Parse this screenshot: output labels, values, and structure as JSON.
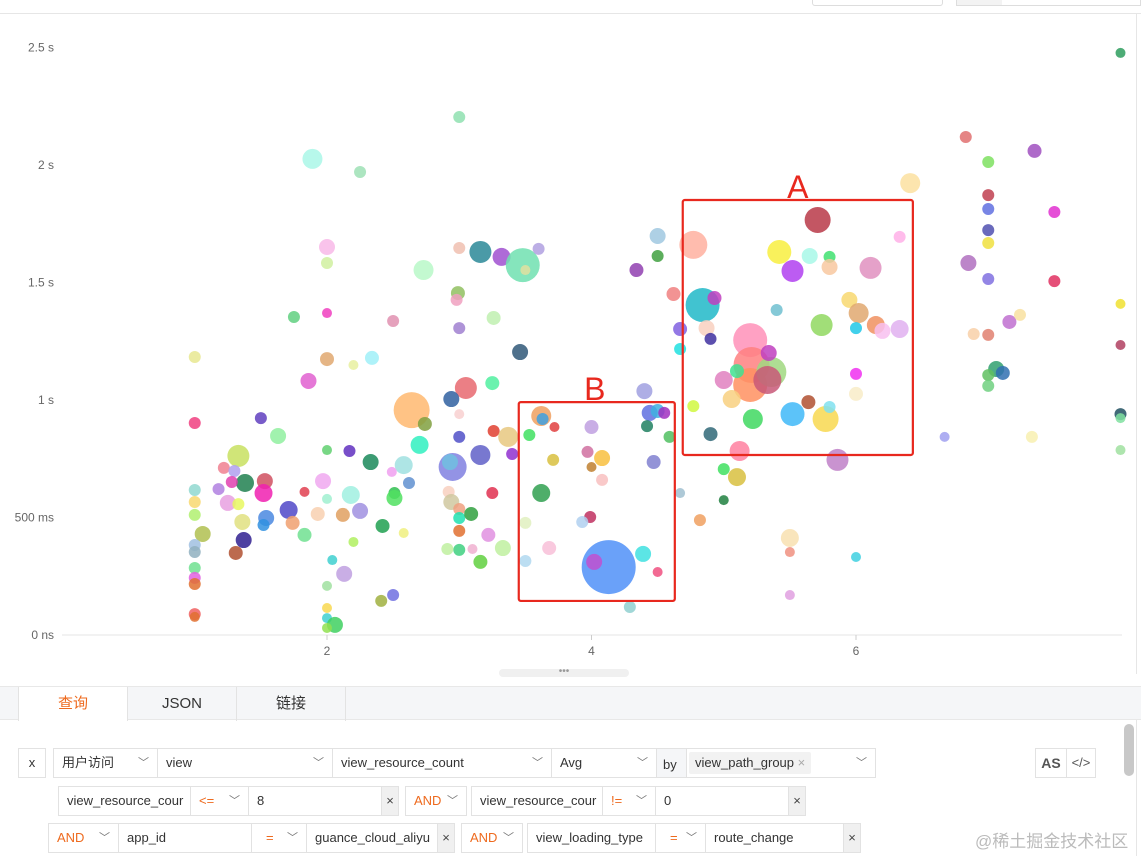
{
  "chart_data": {
    "type": "scatter",
    "variant": "bubble",
    "title": "",
    "xlabel": "",
    "ylabel": "",
    "xlim": [
      0,
      8
    ],
    "ylim_ms": [
      0,
      2600
    ],
    "x_ticks": [
      {
        "value": 2,
        "label": "2"
      },
      {
        "value": 4,
        "label": "4"
      },
      {
        "value": 6,
        "label": "6"
      }
    ],
    "y_ticks": [
      {
        "value": 0,
        "label": "0 ns"
      },
      {
        "value": 500,
        "label": "500 ms"
      },
      {
        "value": 1000,
        "label": "1 s"
      },
      {
        "value": 1500,
        "label": "1.5 s"
      },
      {
        "value": 2000,
        "label": "2 s"
      },
      {
        "value": 2500,
        "label": "2.5 s"
      }
    ],
    "grid": false,
    "points": [
      [
        8.0,
        2477,
        5,
        "#2e9e5e"
      ],
      [
        3.0,
        2204,
        6,
        "#8fe0b0"
      ],
      [
        1.89,
        2026,
        10,
        "#aaf7e8"
      ],
      [
        2.25,
        1970,
        6,
        "#9de0b5"
      ],
      [
        6.83,
        2119,
        6,
        "#e07070"
      ],
      [
        7.0,
        2013,
        6,
        "#7ee060"
      ],
      [
        7.35,
        2060,
        7,
        "#a050c0"
      ],
      [
        6.41,
        1923,
        10,
        "#fbe0a0"
      ],
      [
        7.0,
        1872,
        6,
        "#c04050"
      ],
      [
        7.0,
        1813,
        6,
        "#6070e0"
      ],
      [
        7.5,
        1800,
        6,
        "#e030d0"
      ],
      [
        7.0,
        1723,
        6,
        "#5050b0"
      ],
      [
        7.0,
        1668,
        6,
        "#f0e040"
      ],
      [
        5.71,
        1766,
        13,
        "#b83848"
      ],
      [
        4.77,
        1660,
        14,
        "#ffb0a0"
      ],
      [
        5.42,
        1630,
        12,
        "#f8ee40"
      ],
      [
        5.65,
        1613,
        8,
        "#a8f8e8"
      ],
      [
        5.8,
        1609,
        6,
        "#40e070"
      ],
      [
        5.8,
        1566,
        8,
        "#f8c8a0"
      ],
      [
        5.52,
        1549,
        11,
        "#b040f0"
      ],
      [
        6.11,
        1562,
        11,
        "#e090c0"
      ],
      [
        6.33,
        1694,
        6,
        "#ffb0e8"
      ],
      [
        2.0,
        1651,
        8,
        "#f8b8e8"
      ],
      [
        2.0,
        1583,
        6,
        "#d0f0a0"
      ],
      [
        3.0,
        1647,
        6,
        "#f0c0b0"
      ],
      [
        3.16,
        1630,
        11,
        "#2a8898"
      ],
      [
        3.32,
        1609,
        9,
        "#a050d0"
      ],
      [
        3.48,
        1574,
        17,
        "#70e0b0"
      ],
      [
        3.6,
        1643,
        6,
        "#b0a0e0"
      ],
      [
        3.5,
        1553,
        5,
        "#e0e0a0"
      ],
      [
        2.73,
        1553,
        10,
        "#b8f8c8"
      ],
      [
        2.99,
        1455,
        7,
        "#90c060"
      ],
      [
        2.98,
        1426,
        6,
        "#f0a0c0"
      ],
      [
        4.34,
        1553,
        7,
        "#9040b0"
      ],
      [
        4.5,
        1698,
        8,
        "#a0c8e0"
      ],
      [
        4.5,
        1613,
        6,
        "#40a040"
      ],
      [
        4.62,
        1451,
        7,
        "#f08080"
      ],
      [
        4.84,
        1404,
        17,
        "#20b8c8"
      ],
      [
        4.93,
        1434,
        7,
        "#c040c0"
      ],
      [
        4.67,
        1302,
        7,
        "#8060e0"
      ],
      [
        4.67,
        1217,
        6,
        "#20e0e0"
      ],
      [
        4.87,
        1306,
        8,
        "#f8d0c0"
      ],
      [
        4.9,
        1260,
        6,
        "#4030a0"
      ],
      [
        5.4,
        1383,
        6,
        "#70c0d0"
      ],
      [
        5.74,
        1319,
        11,
        "#90d860"
      ],
      [
        5.95,
        1426,
        8,
        "#f8d870"
      ],
      [
        6.02,
        1370,
        10,
        "#e0a870"
      ],
      [
        6.15,
        1319,
        9,
        "#f09060"
      ],
      [
        6.0,
        1306,
        6,
        "#20c8e8"
      ],
      [
        6.2,
        1294,
        8,
        "#f8c0f0"
      ],
      [
        6.33,
        1302,
        9,
        "#e0b0f0"
      ],
      [
        5.2,
        1255,
        17,
        "#ff90b8"
      ],
      [
        5.21,
        1149,
        18,
        "#ff8080"
      ],
      [
        5.2,
        1064,
        17,
        "#ff9060"
      ],
      [
        5.36,
        1119,
        15,
        "#a0d880"
      ],
      [
        5.33,
        1085,
        14,
        "#c85878"
      ],
      [
        5.34,
        1200,
        8,
        "#c040c0"
      ],
      [
        5.0,
        1085,
        9,
        "#e080c0"
      ],
      [
        5.1,
        1123,
        7,
        "#40e090"
      ],
      [
        5.06,
        1004,
        9,
        "#f8d080"
      ],
      [
        5.22,
        919,
        10,
        "#40d860"
      ],
      [
        5.52,
        940,
        12,
        "#40b8f8"
      ],
      [
        5.77,
        919,
        13,
        "#f8d850"
      ],
      [
        5.64,
        991,
        7,
        "#b05030"
      ],
      [
        5.8,
        970,
        6,
        "#80e0f0"
      ],
      [
        6.0,
        1111,
        6,
        "#f030f0"
      ],
      [
        6.0,
        1026,
        7,
        "#f8ecc8"
      ],
      [
        4.9,
        855,
        7,
        "#306878"
      ],
      [
        5.12,
        783,
        10,
        "#ff80a0"
      ],
      [
        5.86,
        745,
        11,
        "#c080c8"
      ],
      [
        4.77,
        974,
        6,
        "#d0f840"
      ],
      [
        5.0,
        706,
        6,
        "#40e060"
      ],
      [
        5.1,
        672,
        9,
        "#d8c040"
      ],
      [
        5.0,
        574,
        5,
        "#208040"
      ],
      [
        4.82,
        489,
        6,
        "#f0a060"
      ],
      [
        4.67,
        604,
        5,
        "#a0c0d0"
      ],
      [
        5.5,
        413,
        9,
        "#f8e0b0"
      ],
      [
        5.5,
        353,
        5,
        "#f09080"
      ],
      [
        5.5,
        170,
        5,
        "#e0a0e0"
      ],
      [
        6.0,
        332,
        5,
        "#40d0e0"
      ],
      [
        6.67,
        843,
        5,
        "#a0a0f0"
      ],
      [
        7.33,
        843,
        6,
        "#f8f0b0"
      ],
      [
        6.89,
        1281,
        6,
        "#f8d0a8"
      ],
      [
        7.0,
        1277,
        6,
        "#e08070"
      ],
      [
        7.16,
        1332,
        7,
        "#c070d0"
      ],
      [
        7.24,
        1362,
        6,
        "#f8e0a0"
      ],
      [
        7.06,
        1132,
        8,
        "#30a070"
      ],
      [
        7.11,
        1115,
        7,
        "#3070b0"
      ],
      [
        7.0,
        1106,
        6,
        "#60c060"
      ],
      [
        7.0,
        1060,
        6,
        "#70d080"
      ],
      [
        6.85,
        1583,
        8,
        "#b070c0"
      ],
      [
        7.0,
        1515,
        6,
        "#8070e0"
      ],
      [
        7.5,
        1506,
        6,
        "#e03060"
      ],
      [
        8.0,
        1409,
        5,
        "#f0e030"
      ],
      [
        8.0,
        1234,
        5,
        "#b04060"
      ],
      [
        8.0,
        940,
        6,
        "#205060"
      ],
      [
        8.0,
        923,
        5,
        "#80e0a0"
      ],
      [
        8.0,
        787,
        5,
        "#a0e0a0"
      ],
      [
        4.4,
        1038,
        8,
        "#a0a0e0"
      ],
      [
        3.62,
        932,
        10,
        "#f0a060"
      ],
      [
        3.63,
        919,
        6,
        "#40a0e0"
      ],
      [
        3.53,
        851,
        6,
        "#40e060"
      ],
      [
        3.72,
        885,
        5,
        "#e04040"
      ],
      [
        4.0,
        885,
        7,
        "#c0a0e0"
      ],
      [
        4.44,
        945,
        8,
        "#6070e0"
      ],
      [
        4.5,
        953,
        7,
        "#40b0e0"
      ],
      [
        4.55,
        945,
        6,
        "#a030c0"
      ],
      [
        4.42,
        889,
        6,
        "#208060"
      ],
      [
        4.59,
        843,
        6,
        "#50c060"
      ],
      [
        3.71,
        745,
        6,
        "#d8c040"
      ],
      [
        3.97,
        779,
        6,
        "#d070a0"
      ],
      [
        4.08,
        753,
        8,
        "#f8c040"
      ],
      [
        4.0,
        715,
        5,
        "#c08030"
      ],
      [
        4.08,
        660,
        6,
        "#f8c0c0"
      ],
      [
        4.47,
        736,
        7,
        "#8080d0"
      ],
      [
        3.62,
        604,
        9,
        "#30a050"
      ],
      [
        3.5,
        477,
        6,
        "#e0f0c0"
      ],
      [
        3.99,
        502,
        6,
        "#c03060"
      ],
      [
        3.93,
        481,
        6,
        "#b0d0f0"
      ],
      [
        3.68,
        370,
        7,
        "#f8c0d8"
      ],
      [
        4.13,
        289,
        27,
        "#5090f8"
      ],
      [
        4.02,
        311,
        8,
        "#c050d0"
      ],
      [
        4.39,
        345,
        8,
        "#40e0e0"
      ],
      [
        3.5,
        315,
        6,
        "#b0d8f0"
      ],
      [
        4.5,
        268,
        5,
        "#f05080"
      ],
      [
        4.29,
        119,
        6,
        "#90d0d0"
      ],
      [
        1.0,
        1183,
        6,
        "#e8e890"
      ],
      [
        2.0,
        1174,
        7,
        "#e0a870"
      ],
      [
        2.2,
        1149,
        5,
        "#e8f0a0"
      ],
      [
        2.34,
        1179,
        7,
        "#a0f0f8"
      ],
      [
        1.86,
        1081,
        8,
        "#e060d0"
      ],
      [
        1.0,
        902,
        6,
        "#f04080"
      ],
      [
        1.5,
        923,
        6,
        "#6040c0"
      ],
      [
        1.63,
        847,
        8,
        "#90f0a0"
      ],
      [
        2.64,
        957,
        18,
        "#ffb870"
      ],
      [
        2.74,
        898,
        7,
        "#80a040"
      ],
      [
        3.05,
        1051,
        11,
        "#e86870"
      ],
      [
        2.94,
        1004,
        8,
        "#3060a0"
      ],
      [
        3.25,
        1072,
        7,
        "#50f0a0"
      ],
      [
        3.0,
        940,
        5,
        "#f8d0d0"
      ],
      [
        3.46,
        1204,
        8,
        "#305878"
      ],
      [
        3.0,
        1306,
        6,
        "#a080d0"
      ],
      [
        3.26,
        1349,
        7,
        "#c0f0b0"
      ],
      [
        2.5,
        1336,
        6,
        "#e090b0"
      ],
      [
        1.75,
        1353,
        6,
        "#60d080"
      ],
      [
        2.0,
        1370,
        5,
        "#f040c0"
      ],
      [
        1.33,
        762,
        11,
        "#c8e060"
      ],
      [
        1.22,
        711,
        6,
        "#f08090"
      ],
      [
        1.3,
        698,
        6,
        "#b0a0f0"
      ],
      [
        1.38,
        647,
        9,
        "#208050"
      ],
      [
        1.28,
        651,
        6,
        "#e040b0"
      ],
      [
        1.53,
        655,
        8,
        "#d05060"
      ],
      [
        1.52,
        604,
        9,
        "#f020b0"
      ],
      [
        1.0,
        617,
        6,
        "#90d8d0"
      ],
      [
        1.18,
        621,
        6,
        "#b080e0"
      ],
      [
        1.25,
        562,
        8,
        "#e8a0e0"
      ],
      [
        1.33,
        557,
        6,
        "#e8f860"
      ],
      [
        1.0,
        566,
        6,
        "#f8d870"
      ],
      [
        1.0,
        511,
        6,
        "#b0f070"
      ],
      [
        1.06,
        430,
        8,
        "#b0c050"
      ],
      [
        1.36,
        481,
        8,
        "#e0e080"
      ],
      [
        1.37,
        404,
        8,
        "#302090"
      ],
      [
        1.31,
        349,
        7,
        "#b05030"
      ],
      [
        1.54,
        498,
        8,
        "#4a88e0"
      ],
      [
        1.52,
        468,
        6,
        "#3090e0"
      ],
      [
        1.0,
        383,
        6,
        "#a0c0e0"
      ],
      [
        1.0,
        353,
        6,
        "#90b0c0"
      ],
      [
        1.0,
        285,
        6,
        "#70e090"
      ],
      [
        1.0,
        243,
        6,
        "#e060e0"
      ],
      [
        1.0,
        217,
        6,
        "#e07030"
      ],
      [
        1.0,
        89,
        6,
        "#f06060"
      ],
      [
        1.0,
        77,
        5,
        "#e07030"
      ],
      [
        1.71,
        532,
        9,
        "#5048c8"
      ],
      [
        1.74,
        477,
        7,
        "#f0a070"
      ],
      [
        1.83,
        426,
        7,
        "#70e090"
      ],
      [
        1.83,
        609,
        5,
        "#e04050"
      ],
      [
        1.97,
        655,
        8,
        "#f0a8f0"
      ],
      [
        2.0,
        579,
        5,
        "#a0f0d0"
      ],
      [
        2.17,
        783,
        6,
        "#6030c0"
      ],
      [
        2.0,
        787,
        5,
        "#60d070"
      ],
      [
        2.33,
        736,
        8,
        "#1a8a5a"
      ],
      [
        2.18,
        596,
        9,
        "#a0f0e0"
      ],
      [
        1.93,
        515,
        7,
        "#f8d0b0"
      ],
      [
        2.12,
        511,
        7,
        "#e0a060"
      ],
      [
        2.25,
        528,
        8,
        "#a090e0"
      ],
      [
        2.42,
        464,
        7,
        "#20a050"
      ],
      [
        2.51,
        604,
        6,
        "#30c050"
      ],
      [
        2.51,
        583,
        8,
        "#50e060"
      ],
      [
        2.58,
        434,
        5,
        "#f0f080"
      ],
      [
        2.2,
        396,
        5,
        "#b0f060"
      ],
      [
        2.04,
        319,
        5,
        "#40d0d0"
      ],
      [
        2.13,
        260,
        8,
        "#c0a0e0"
      ],
      [
        2.0,
        209,
        5,
        "#a0e0a0"
      ],
      [
        2.0,
        115,
        5,
        "#f8d850"
      ],
      [
        2.0,
        72,
        5,
        "#40d0d0"
      ],
      [
        2.06,
        43,
        8,
        "#40d060"
      ],
      [
        2.0,
        30,
        5,
        "#90e050"
      ],
      [
        2.41,
        145,
        6,
        "#a0b040"
      ],
      [
        2.5,
        170,
        6,
        "#7070e0"
      ],
      [
        2.7,
        809,
        9,
        "#30f0c0"
      ],
      [
        2.58,
        723,
        9,
        "#a0e0e0"
      ],
      [
        2.62,
        647,
        6,
        "#6090d0"
      ],
      [
        2.49,
        694,
        5,
        "#f0a0f0"
      ],
      [
        2.95,
        715,
        14,
        "#8080e0"
      ],
      [
        2.93,
        736,
        8,
        "#70c0e0"
      ],
      [
        3.16,
        766,
        10,
        "#6060c8"
      ],
      [
        3.0,
        843,
        6,
        "#5050c8"
      ],
      [
        3.26,
        868,
        6,
        "#e04030"
      ],
      [
        3.25,
        604,
        6,
        "#e03050"
      ],
      [
        3.37,
        843,
        10,
        "#e8c880"
      ],
      [
        3.4,
        770,
        6,
        "#9030d0"
      ],
      [
        2.92,
        609,
        6,
        "#f8d0c0"
      ],
      [
        2.94,
        566,
        8,
        "#d0c8a0"
      ],
      [
        3.0,
        536,
        6,
        "#f0a080"
      ],
      [
        3.0,
        498,
        6,
        "#20e0b0"
      ],
      [
        3.0,
        443,
        6,
        "#e07030"
      ],
      [
        3.09,
        515,
        7,
        "#30a040"
      ],
      [
        3.22,
        426,
        7,
        "#e090e0"
      ],
      [
        3.0,
        362,
        6,
        "#40d080"
      ],
      [
        2.91,
        366,
        6,
        "#c0f0a0"
      ],
      [
        3.33,
        370,
        8,
        "#c0f0a0"
      ],
      [
        3.1,
        366,
        5,
        "#f0b0d0"
      ],
      [
        3.16,
        311,
        7,
        "#60d040"
      ]
    ],
    "point_fields": [
      "x",
      "y_ms",
      "size",
      "color"
    ],
    "annotations": [
      {
        "label": "A",
        "x_range": [
          4.69,
          6.43
        ],
        "y_range_ms": [
          766,
          1851
        ],
        "color": "#e8281e"
      },
      {
        "label": "B",
        "x_range": [
          3.45,
          4.63
        ],
        "y_range_ms": [
          145,
          991
        ],
        "color": "#e8281e"
      }
    ]
  },
  "tabs": [
    {
      "label": "查询",
      "active": true
    },
    {
      "label": "JSON"
    },
    {
      "label": "链接"
    }
  ],
  "query": {
    "remove": "x",
    "source": "用户访问",
    "measurement": "view",
    "field": "view_resource_count",
    "aggregate": "Avg",
    "by_label": "by",
    "group_tag": "view_path_group",
    "as_button": "AS",
    "code_button": "</>",
    "filters": [
      {
        "field": "view_resource_cour",
        "op": "<=",
        "value": "8"
      },
      {
        "conj": "AND",
        "field": "view_resource_cour",
        "op": "!=",
        "value": "0"
      },
      {
        "conj": "AND",
        "field": "app_id",
        "op": "=",
        "value": "guance_cloud_aliyu"
      },
      {
        "conj": "AND",
        "field": "view_loading_type",
        "op": "=",
        "value": "route_change"
      }
    ],
    "clear": "×"
  },
  "accent_color": "#ee6a1e",
  "watermark": "@稀土掘金技术社区"
}
